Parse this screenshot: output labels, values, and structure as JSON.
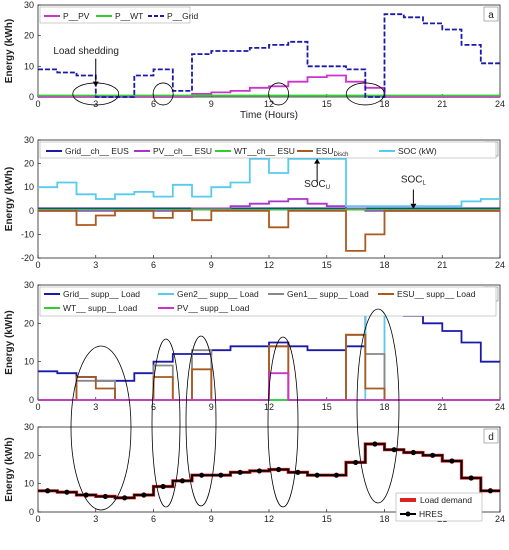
{
  "chart_data": [
    {
      "id": "a",
      "type": "line",
      "panel_label": "a",
      "ylabel": "Energy (kWh)",
      "xlabel": "Time (Hours)",
      "xlim": [
        0,
        24
      ],
      "ylim": [
        0,
        30
      ],
      "xticks": [
        0,
        3,
        6,
        9,
        12,
        15,
        18,
        21,
        24
      ],
      "yticks": [
        0,
        10,
        20,
        30
      ],
      "legend": "top-left",
      "series": [
        {
          "name": "P__PV",
          "color": "#cc33cc",
          "style": "solid",
          "values": [
            0,
            0,
            0,
            0,
            0,
            0,
            0,
            0,
            1,
            1.5,
            2,
            3,
            3.5,
            5,
            6.5,
            7,
            5,
            3,
            0,
            0,
            0,
            0,
            0,
            0
          ]
        },
        {
          "name": "P__WT",
          "color": "#33cc33",
          "style": "solid",
          "values": [
            0.5,
            0.5,
            0.5,
            0.5,
            0.5,
            0.5,
            0.5,
            0.5,
            0.5,
            0.5,
            0.5,
            0.5,
            0.5,
            0.5,
            0.5,
            0.5,
            0.5,
            0.5,
            0.5,
            0.5,
            0.5,
            0.5,
            0.5,
            0.5
          ]
        },
        {
          "name": "P__Grid",
          "color": "#1a1aaa",
          "style": "dashed",
          "values": [
            9,
            8,
            7,
            0,
            0,
            7,
            9,
            2,
            14,
            15,
            15,
            16,
            17,
            18,
            10,
            10,
            9,
            0,
            27,
            26,
            24,
            22,
            17,
            11
          ]
        }
      ],
      "annotations": [
        {
          "text": "Load shedding",
          "x": 2.5,
          "y": 14
        }
      ]
    },
    {
      "id": "b",
      "type": "line",
      "panel_label": "b",
      "ylabel": "Energy (kWh)",
      "xlim": [
        0,
        24
      ],
      "ylim": [
        -20,
        30
      ],
      "xticks": [
        0,
        3,
        6,
        9,
        12,
        15,
        18,
        21,
        24
      ],
      "yticks": [
        -20,
        -10,
        0,
        10,
        20,
        30
      ],
      "legend": "top",
      "series": [
        {
          "name": "Grid__ch__ EUS",
          "color": "#1a1aaa",
          "values": [
            1,
            1,
            1,
            1,
            1,
            1,
            1,
            1,
            1,
            1,
            1,
            1,
            1,
            1,
            1,
            1,
            1,
            1,
            1,
            1,
            1,
            1,
            1,
            1
          ]
        },
        {
          "name": "PV__ch__ ESU",
          "color": "#aa33cc",
          "values": [
            0,
            0,
            0,
            0,
            0,
            0,
            0,
            0,
            1,
            1,
            2,
            3,
            4,
            5,
            3,
            2,
            1,
            0,
            0,
            0,
            0,
            0,
            0,
            0
          ]
        },
        {
          "name": "WT__ch__ ESU",
          "color": "#33cc33",
          "values": [
            0.5,
            0.5,
            0.5,
            0.5,
            0.5,
            0.5,
            0.5,
            0.5,
            0.5,
            0.5,
            0.5,
            0.5,
            0.5,
            0.5,
            0.5,
            0.5,
            0.5,
            0.5,
            0.5,
            0.5,
            0.5,
            0.5,
            0.5,
            0.5
          ]
        },
        {
          "name": "ESU",
          "name_sub": "Disch",
          "color": "#aa5a1e",
          "values": [
            0,
            0,
            -6,
            -2,
            0,
            0,
            -3,
            0,
            -4,
            0,
            0,
            0,
            -7,
            0,
            0,
            0,
            -17,
            -10,
            0,
            0,
            0,
            0,
            0,
            0
          ]
        },
        {
          "name": "SOC (kW)",
          "color": "#55ccee",
          "values": [
            10,
            12,
            7,
            5,
            7,
            8,
            6,
            11,
            6,
            10,
            12,
            22,
            16,
            22,
            22,
            22,
            2,
            2,
            2,
            2,
            2,
            2,
            4,
            5
          ]
        }
      ],
      "annotations": [
        {
          "text": "SOC",
          "sub": "U",
          "x": 14.5,
          "y": 10
        },
        {
          "text": "SOC",
          "sub": "L",
          "x": 19.5,
          "y": 12
        }
      ]
    },
    {
      "id": "c",
      "type": "line",
      "panel_label": "c",
      "ylabel": "Energy (kWh)",
      "xlim": [
        0,
        24
      ],
      "ylim": [
        0,
        30
      ],
      "xticks": [
        0,
        3,
        6,
        9,
        12,
        15,
        18,
        21,
        24
      ],
      "yticks": [
        0,
        10,
        20,
        30
      ],
      "legend": "top",
      "series": [
        {
          "name": "Grid__ supp__ Load",
          "color": "#1a1aaa",
          "values": [
            7.5,
            7,
            6,
            5,
            5,
            7,
            10,
            12,
            12,
            13,
            14,
            14,
            15,
            14,
            13,
            13,
            14,
            24,
            23,
            22,
            20,
            18,
            15,
            10
          ]
        },
        {
          "name": "Gen2__ supp__ Load",
          "color": "#55ccee",
          "values": [
            0,
            0,
            0,
            0,
            0,
            0,
            0,
            0,
            0,
            0,
            0,
            0,
            0,
            0,
            0,
            0,
            0,
            24,
            0,
            0,
            0,
            0,
            0,
            0
          ]
        },
        {
          "name": "Gen1__ supp__ Load",
          "color": "#888888",
          "values": [
            0,
            0,
            5,
            5,
            0,
            0,
            9,
            0,
            13,
            0,
            0,
            0,
            14,
            0,
            0,
            0,
            17,
            12,
            0,
            0,
            0,
            0,
            0,
            0
          ]
        },
        {
          "name": "ESU__ supp__ Load",
          "color": "#aa5a1e",
          "values": [
            0,
            0,
            6,
            3,
            0,
            0,
            6,
            0,
            8,
            0,
            0,
            0,
            14,
            0,
            0,
            0,
            17,
            3,
            0,
            0,
            0,
            0,
            0,
            0
          ]
        },
        {
          "name": "WT__ supp__ Load",
          "color": "#33cc33",
          "values": [
            0,
            0,
            0,
            0,
            0,
            0,
            0,
            0,
            0,
            0,
            0,
            0,
            0,
            0,
            0,
            0,
            0,
            0,
            0,
            0,
            0,
            0,
            0,
            0
          ]
        },
        {
          "name": "PV__ supp__ Load",
          "color": "#cc33cc",
          "values": [
            0,
            0,
            0,
            0,
            0,
            0,
            0,
            0,
            0,
            0,
            0,
            0,
            7,
            0,
            0,
            0,
            0,
            0,
            0,
            0,
            0,
            0,
            0,
            0
          ]
        }
      ]
    },
    {
      "id": "d",
      "type": "line",
      "panel_label": "d",
      "ylabel": "Energy (kWh)",
      "xlim": [
        0,
        24
      ],
      "ylim": [
        0,
        30
      ],
      "xticks": [
        0,
        3,
        6,
        9,
        12,
        15,
        18,
        21,
        24
      ],
      "yticks": [
        0,
        10,
        20,
        30
      ],
      "legend": "bottom-right",
      "series": [
        {
          "name": "Load demand",
          "color": "#dd2222",
          "values": [
            7.5,
            7,
            6,
            5.5,
            5,
            6,
            9,
            11,
            13,
            13,
            14,
            14.5,
            15,
            14,
            13,
            13,
            17.5,
            24,
            22,
            21,
            20,
            18,
            12,
            7.5
          ]
        },
        {
          "name": "HRES",
          "color": "#000000",
          "marker": "circle",
          "values": [
            7.5,
            7,
            6,
            5.5,
            5,
            6,
            9,
            11,
            13,
            13,
            14,
            14.5,
            15,
            14,
            13,
            13,
            17.5,
            24,
            22,
            21,
            20,
            18,
            12,
            7.5
          ]
        }
      ]
    }
  ]
}
